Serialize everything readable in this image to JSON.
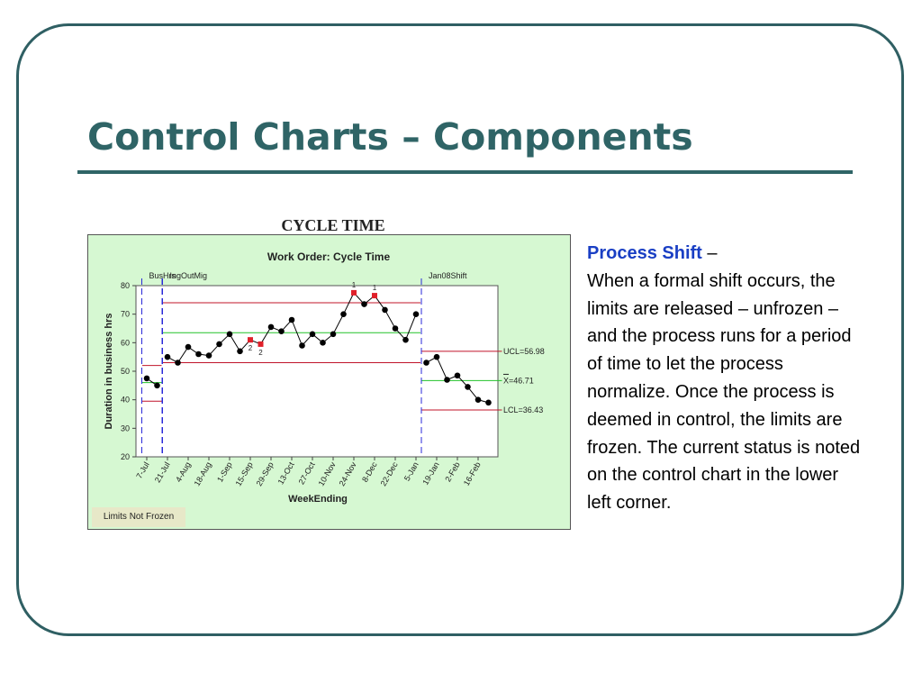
{
  "slide": {
    "title": "Control Charts – Components"
  },
  "chart_heading": "CYCLE TIME",
  "status_label": "Limits Not Frozen",
  "description": {
    "heading": "Process Shift",
    "heading_suffix": " –",
    "body": "When a formal shift occurs, the limits are released – unfrozen – and the process runs for a period of time to let the process normalize.  Once the process is deemed in control, the limits are frozen.  The current status is noted on the control chart in the lower left corner."
  },
  "colors": {
    "heading_teal": "#2f6466",
    "accent_blue": "#1a3fc4",
    "chart_bg": "#d6f8d2",
    "ucl_red": "#c0142a",
    "center_green": "#22c22a",
    "point_black": "#000000",
    "flag_red": "#e0202a",
    "phase_blue": "#2a2ad8"
  },
  "chart_data": {
    "type": "line",
    "title": "Work Order: Cycle Time",
    "xlabel": "WeekEnding",
    "ylabel": "Duration in business hrs",
    "ylim": [
      20,
      80
    ],
    "yticks": [
      20,
      30,
      40,
      50,
      60,
      70,
      80
    ],
    "x_ticks": [
      "7-Jul",
      "21-Jul",
      "4-Aug",
      "18-Aug",
      "1-Sep",
      "15-Sep",
      "29-Sep",
      "13-Oct",
      "27-Oct",
      "10-Nov",
      "24-Nov",
      "8-Dec",
      "22-Dec",
      "5-Jan",
      "19-Jan",
      "2-Feb",
      "16-Feb"
    ],
    "points": [
      {
        "week": "7-Jul",
        "value": 47.5
      },
      {
        "week": "14-Jul",
        "value": 45
      },
      {
        "week": "21-Jul",
        "value": 55
      },
      {
        "week": "28-Jul",
        "value": 53
      },
      {
        "week": "4-Aug",
        "value": 58.5
      },
      {
        "week": "11-Aug",
        "value": 56
      },
      {
        "week": "18-Aug",
        "value": 55.5
      },
      {
        "week": "25-Aug",
        "value": 59.5
      },
      {
        "week": "1-Sep",
        "value": 63
      },
      {
        "week": "8-Sep",
        "value": 57
      },
      {
        "week": "15-Sep",
        "value": 61,
        "flag": "2"
      },
      {
        "week": "22-Sep",
        "value": 59.5,
        "flag": "2"
      },
      {
        "week": "29-Sep",
        "value": 65.5
      },
      {
        "week": "6-Oct",
        "value": 64
      },
      {
        "week": "13-Oct",
        "value": 68
      },
      {
        "week": "20-Oct",
        "value": 59
      },
      {
        "week": "27-Oct",
        "value": 63
      },
      {
        "week": "3-Nov",
        "value": 60
      },
      {
        "week": "10-Nov",
        "value": 63
      },
      {
        "week": "17-Nov",
        "value": 70
      },
      {
        "week": "24-Nov",
        "value": 77.5,
        "flag": "1"
      },
      {
        "week": "1-Dec",
        "value": 73.5
      },
      {
        "week": "8-Dec",
        "value": 76.5,
        "flag": "1"
      },
      {
        "week": "15-Dec",
        "value": 71.5
      },
      {
        "week": "22-Dec",
        "value": 65
      },
      {
        "week": "29-Dec",
        "value": 61
      },
      {
        "week": "5-Jan",
        "value": 70
      },
      {
        "week": "12-Jan",
        "value": 53
      },
      {
        "week": "19-Jan",
        "value": 55
      },
      {
        "week": "26-Jan",
        "value": 47
      },
      {
        "week": "2-Feb",
        "value": 48.5
      },
      {
        "week": "9-Feb",
        "value": 44.5
      },
      {
        "week": "16-Feb",
        "value": 40
      },
      {
        "week": "23-Feb",
        "value": 39
      }
    ],
    "phases": [
      {
        "label": "BusHrs",
        "start": "7-Jul",
        "end": "14-Jul",
        "ucl": 52,
        "center": 46,
        "lcl": 39.5
      },
      {
        "label": "IngOutMig",
        "start": "21-Jul",
        "end": "5-Jan",
        "ucl": 74,
        "center": 63.5,
        "lcl": 53
      },
      {
        "label": "Jan08Shift",
        "start": "12-Jan",
        "end": "23-Feb",
        "ucl": 56.98,
        "center": 46.71,
        "lcl": 36.43
      }
    ],
    "limit_labels": {
      "ucl": "UCL=56.98",
      "center": "X=46.71",
      "lcl": "LCL=36.43"
    },
    "grid": false,
    "legend": "none"
  }
}
